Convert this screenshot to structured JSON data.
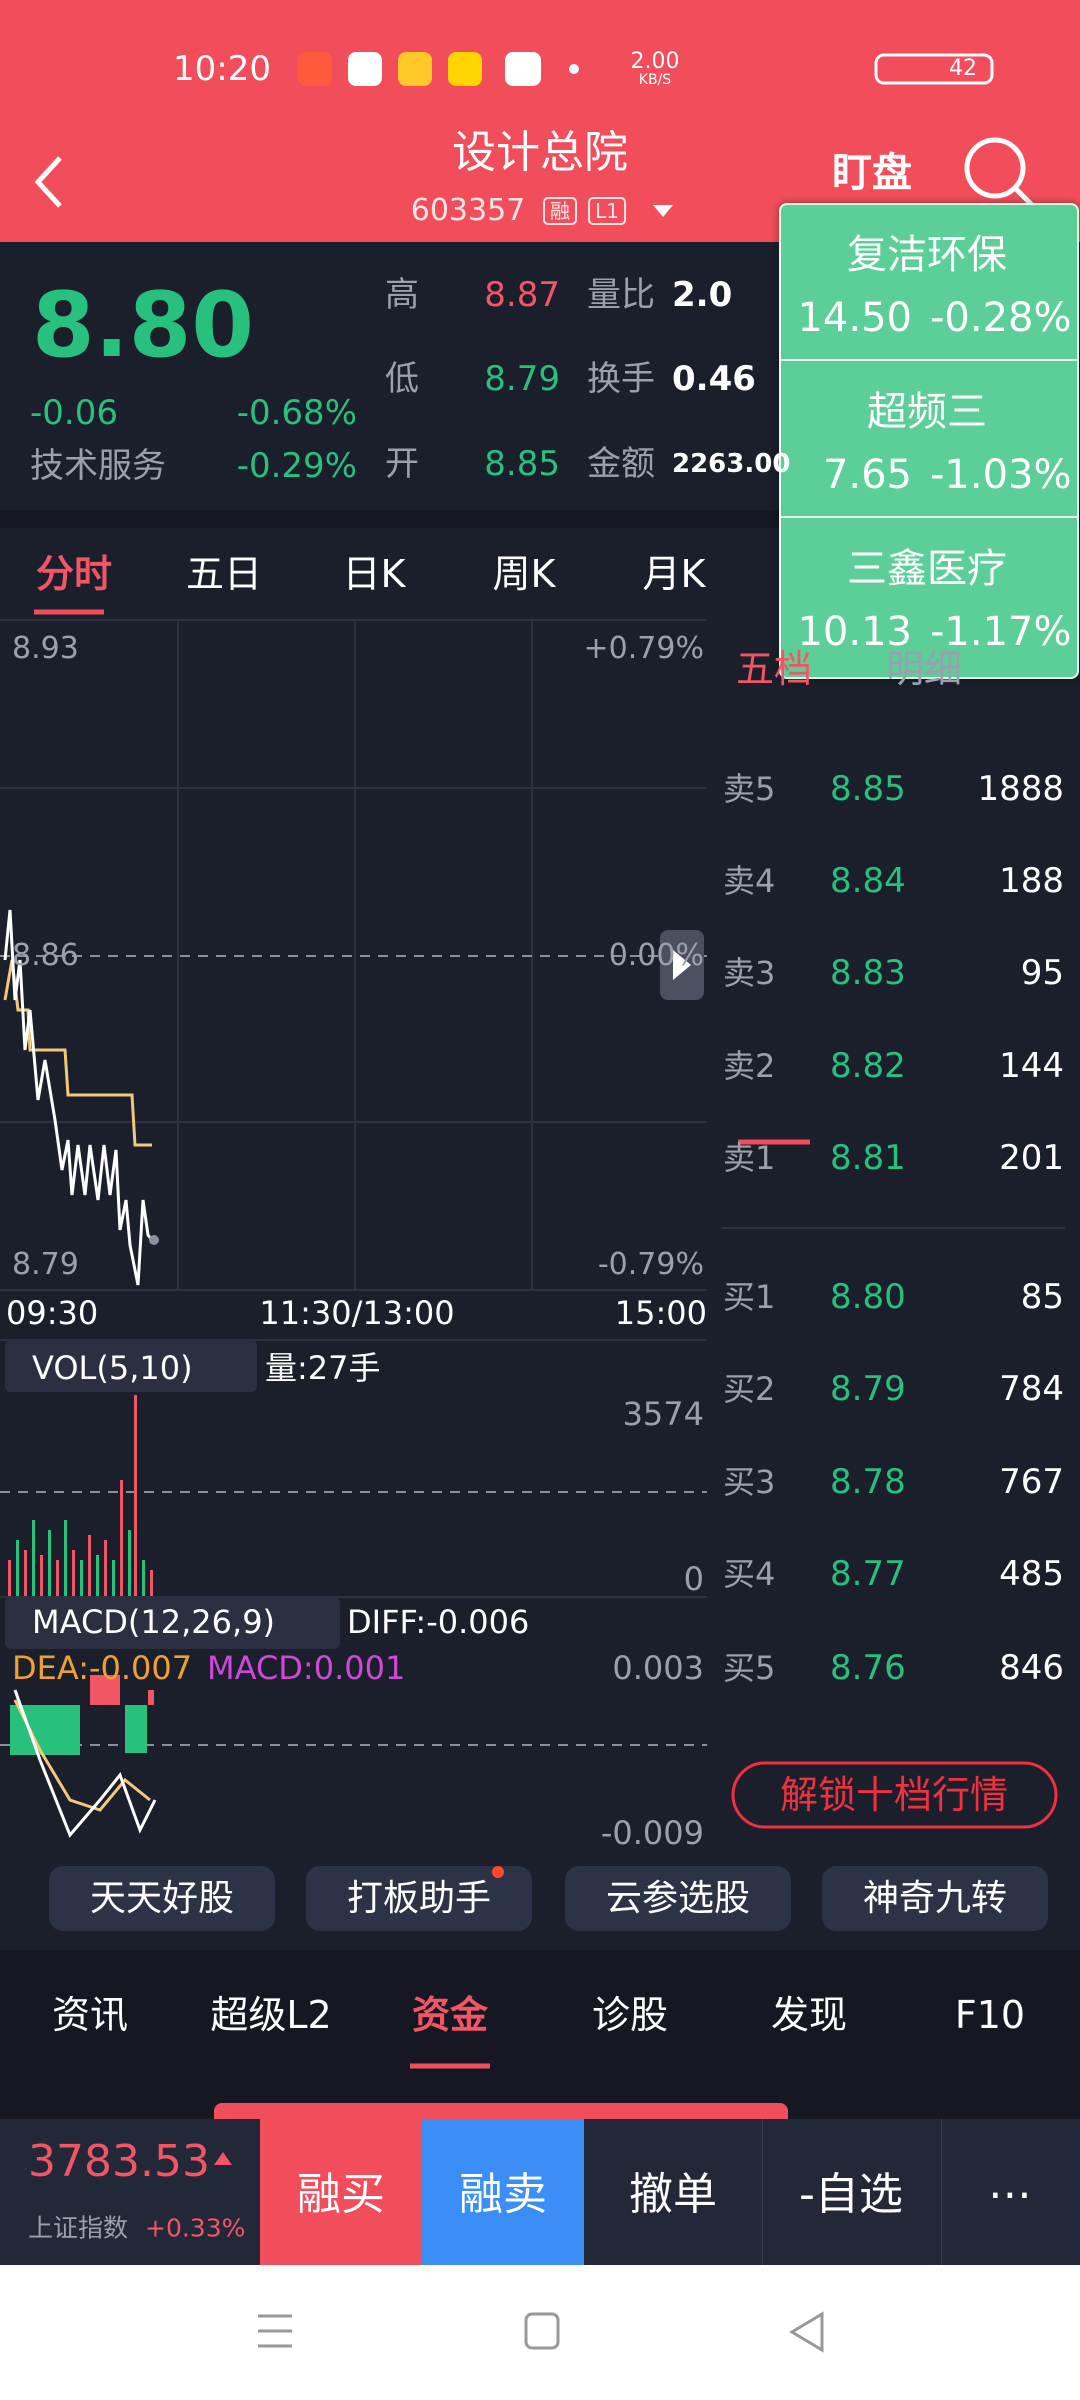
{
  "status_bar": {
    "time": "10:20",
    "net_speed": "2.00",
    "net_unit": "KB/S",
    "battery": "42"
  },
  "header": {
    "title": "设计总院",
    "code": "603357",
    "badges": [
      "融",
      "L1"
    ],
    "watch": "盯盘"
  },
  "quote": {
    "price": "8.80",
    "change": "-0.06",
    "change_pct": "-0.68%",
    "sector": "技术服务",
    "sector_pct": "-0.29%",
    "stats_left": [
      {
        "label": "高",
        "value": "8.87",
        "color": "#f25563"
      },
      {
        "label": "低",
        "value": "8.79",
        "color": "#27c07d"
      },
      {
        "label": "开",
        "value": "8.85",
        "color": "#27c07d"
      }
    ],
    "stats_right": [
      {
        "label": "量比",
        "value": "2.0"
      },
      {
        "label": "换手",
        "value": "0.46"
      },
      {
        "label": "金额",
        "value": "2263.00"
      }
    ]
  },
  "popup": [
    {
      "name": "复洁环保",
      "price": "14.50",
      "pct": "-0.28%"
    },
    {
      "name": "超频三",
      "price": "7.65",
      "pct": "-1.03%"
    },
    {
      "name": "三鑫医疗",
      "price": "10.13",
      "pct": "-1.17%"
    }
  ],
  "chart_tabs": [
    "分时",
    "五日",
    "日K",
    "周K",
    "月K"
  ],
  "intraday": {
    "price_labels": [
      "8.93",
      "8.86",
      "8.79"
    ],
    "pct_labels": [
      "+0.79%",
      "0.00%",
      "-0.79%"
    ],
    "time_labels": [
      "09:30",
      "11:30/13:00",
      "15:00"
    ]
  },
  "volume": {
    "indicator": "VOL(5,10)",
    "current": "量:27手",
    "max": "3574",
    "min": "0"
  },
  "macd": {
    "indicator": "MACD(12,26,9)",
    "diff": "DIFF:-0.006",
    "dea": "DEA:-0.007",
    "macd": "MACD:0.001",
    "max": "0.003",
    "min": "-0.009"
  },
  "order_book": {
    "tabs": [
      "五档",
      "明细"
    ],
    "asks": [
      {
        "label": "卖5",
        "price": "8.85",
        "volume": "1888"
      },
      {
        "label": "卖4",
        "price": "8.84",
        "volume": "188"
      },
      {
        "label": "卖3",
        "price": "8.83",
        "volume": "95"
      },
      {
        "label": "卖2",
        "price": "8.82",
        "volume": "144"
      },
      {
        "label": "卖1",
        "price": "8.81",
        "volume": "201"
      }
    ],
    "bids": [
      {
        "label": "买1",
        "price": "8.80",
        "volume": "85"
      },
      {
        "label": "买2",
        "price": "8.79",
        "volume": "784"
      },
      {
        "label": "买3",
        "price": "8.78",
        "volume": "767"
      },
      {
        "label": "买4",
        "price": "8.77",
        "volume": "485"
      },
      {
        "label": "买5",
        "price": "8.76",
        "volume": "846"
      }
    ],
    "unlock": "解锁十档行情"
  },
  "tools": [
    "天天好股",
    "打板助手",
    "云参选股",
    "神奇九转"
  ],
  "bottom_tabs": [
    "资讯",
    "超级L2",
    "资金",
    "诊股",
    "发现",
    "F10"
  ],
  "index": {
    "value": "3783.53",
    "name": "上证指数",
    "pct": "+0.33%"
  },
  "actions": [
    "融买",
    "融卖",
    "撤单",
    "-自选",
    "⋯"
  ]
}
